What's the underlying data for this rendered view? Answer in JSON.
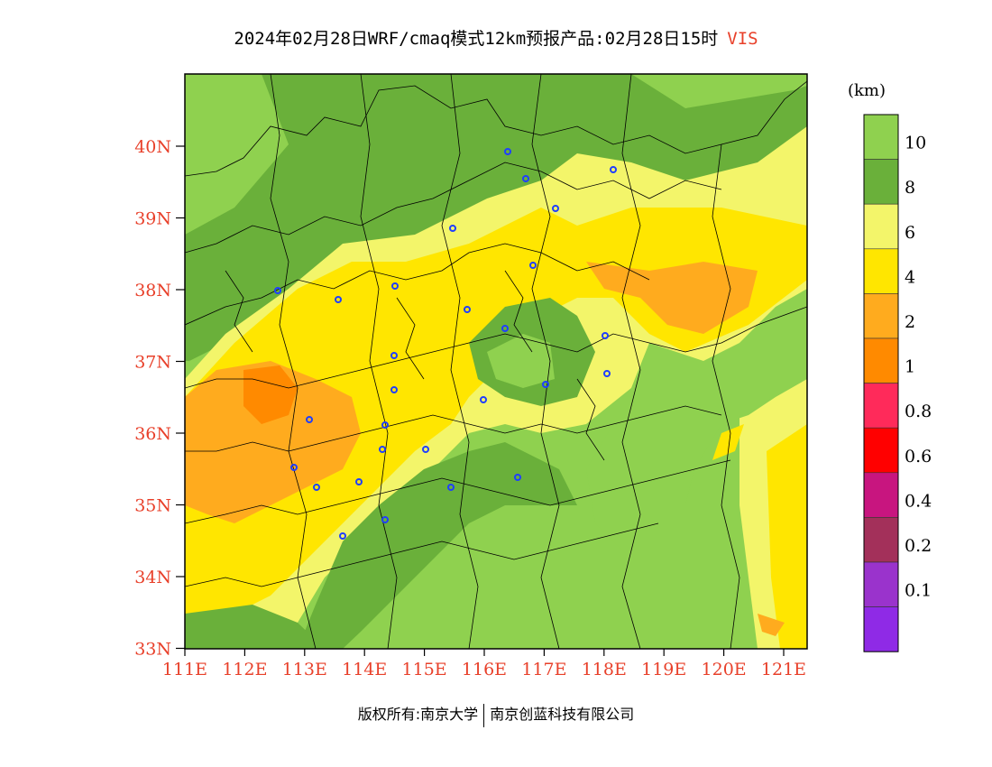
{
  "title": {
    "main": "2024年02月28日WRF/cmaq模式12km预报产品:02月28日15时",
    "variable": "VIS"
  },
  "axes": {
    "lat_labels": [
      "40N",
      "39N",
      "38N",
      "37N",
      "36N",
      "35N",
      "34N",
      "33N"
    ],
    "lon_labels": [
      "111E",
      "112E",
      "113E",
      "114E",
      "115E",
      "116E",
      "117E",
      "118E",
      "119E",
      "120E",
      "121E"
    ]
  },
  "legend": {
    "unit": "(km)",
    "labels": [
      "10",
      "8",
      "6",
      "4",
      "2",
      "1",
      "0.8",
      "0.6",
      "0.4",
      "0.2",
      "0.1"
    ],
    "colors": [
      "#8fd14f",
      "#6ab03a",
      "#f3f56a",
      "#ffe600",
      "#ffab1e",
      "#ff8a00",
      "#ff2a5a",
      "#ff0000",
      "#c8157f",
      "#a3305a",
      "#9a33cc",
      "#8f2ae6"
    ]
  },
  "footer": {
    "left": "版权所有:南京大学",
    "right": "南京创蓝科技有限公司"
  },
  "stations": "blue-circle-icon"
}
